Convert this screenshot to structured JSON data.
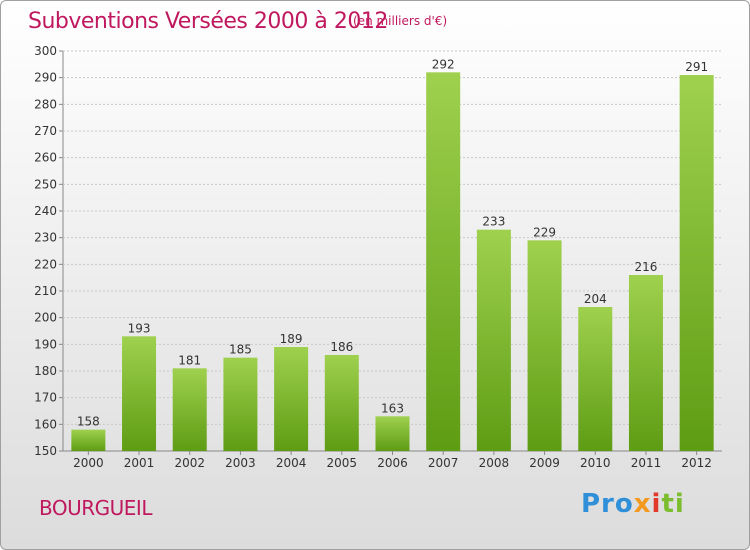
{
  "header": {
    "title": "Subventions Versées 2000 à 2012",
    "unit": "(en milliers d'€)"
  },
  "footer": {
    "commune": "BOURGUEIL",
    "logo": [
      "Pro",
      "x",
      "i",
      "ti"
    ]
  },
  "colors": {
    "title": "#c0185e",
    "bar_top": "#9fd14e",
    "bar_bottom": "#5e9c14"
  },
  "chart_data": {
    "type": "bar",
    "title": "Subventions Versées 2000 à 2012",
    "subtitle": "(en milliers d'€)",
    "categories": [
      "2000",
      "2001",
      "2002",
      "2003",
      "2004",
      "2005",
      "2006",
      "2007",
      "2008",
      "2009",
      "2010",
      "2011",
      "2012"
    ],
    "values": [
      158,
      193,
      181,
      185,
      189,
      186,
      163,
      292,
      233,
      229,
      204,
      216,
      291
    ],
    "ylim": [
      150,
      300
    ],
    "yticks": [
      150,
      160,
      170,
      180,
      190,
      200,
      210,
      220,
      230,
      240,
      250,
      260,
      270,
      280,
      290,
      300
    ],
    "grid": true
  }
}
